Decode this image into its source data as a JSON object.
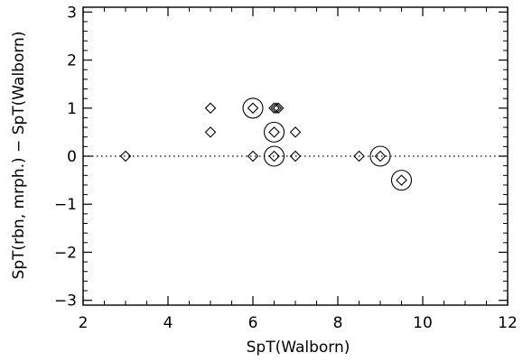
{
  "chart_data": {
    "type": "scatter",
    "xlabel": "SpT(Walborn)",
    "ylabel": "SpT(rbn, mrph.) − SpT(Walborn)",
    "xlim": [
      2,
      12
    ],
    "ylim": [
      -3.1,
      3.1
    ],
    "xticks": [
      2,
      4,
      6,
      8,
      10,
      12
    ],
    "yticks": [
      -3,
      -2,
      -1,
      0,
      1,
      2,
      3
    ],
    "x_tick_labels": [
      "2",
      "4",
      "6",
      "8",
      "10",
      "12"
    ],
    "y_tick_labels": [
      "−3",
      "−2",
      "−1",
      "0",
      "1",
      "2",
      "3"
    ],
    "reference_line": {
      "y": 0,
      "style": "dotted"
    },
    "points": [
      {
        "x": 3.0,
        "y": 0.0
      },
      {
        "x": 5.0,
        "y": 1.0
      },
      {
        "x": 5.0,
        "y": 0.5
      },
      {
        "x": 6.0,
        "y": 1.0
      },
      {
        "x": 6.0,
        "y": 0.0
      },
      {
        "x": 6.5,
        "y": 1.0
      },
      {
        "x": 6.55,
        "y": 1.0
      },
      {
        "x": 6.6,
        "y": 1.0
      },
      {
        "x": 6.5,
        "y": 0.5
      },
      {
        "x": 6.5,
        "y": 0.0
      },
      {
        "x": 7.0,
        "y": 0.5
      },
      {
        "x": 7.0,
        "y": 0.0
      },
      {
        "x": 8.5,
        "y": 0.0
      },
      {
        "x": 9.0,
        "y": 0.0
      },
      {
        "x": 9.5,
        "y": -0.5
      }
    ],
    "circled_points": [
      {
        "x": 6.0,
        "y": 1.0
      },
      {
        "x": 6.5,
        "y": 0.5
      },
      {
        "x": 6.5,
        "y": 0.0
      },
      {
        "x": 9.0,
        "y": 0.0
      },
      {
        "x": 9.5,
        "y": -0.5
      }
    ],
    "marker": "diamond",
    "grid": false,
    "color": "#000000"
  }
}
